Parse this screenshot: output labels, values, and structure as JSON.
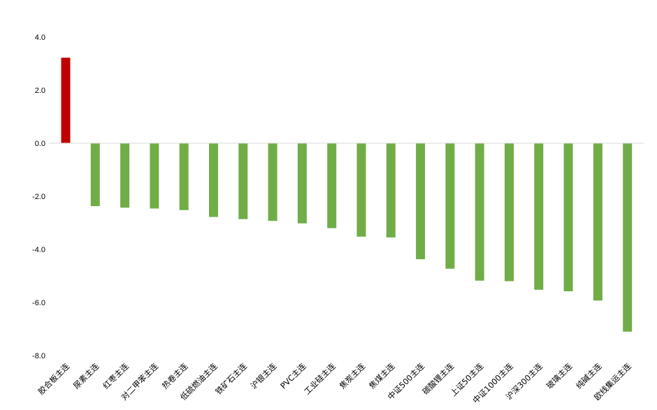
{
  "chart_data": {
    "type": "bar",
    "title": "",
    "xlabel": "",
    "ylabel": "",
    "ylim": [
      -8.0,
      4.0
    ],
    "yticks": [
      "4.0",
      "2.0",
      "0.0",
      "-2.0",
      "-4.0",
      "-6.0",
      "-8.0"
    ],
    "grid": false,
    "legend": "none",
    "colors": {
      "positive": "#C00000",
      "negative": "#70AD47",
      "zero_line": "#D9D9D9"
    },
    "categories": [
      "胶合板主连",
      "尿素主连",
      "红枣主连",
      "对二甲苯主连",
      "热卷主连",
      "低硫燃油主连",
      "铁矿石主连",
      "沪银主连",
      "PVC主连",
      "工业硅主连",
      "焦炭主连",
      "焦煤主连",
      "中证500主连",
      "碳酸锂主连",
      "上证50主连",
      "中证1000主连",
      "沪深300主连",
      "玻璃主连",
      "纯碱主连",
      "欧线集运主连"
    ],
    "values": [
      3.22,
      -2.37,
      -2.43,
      -2.46,
      -2.52,
      -2.78,
      -2.86,
      -2.93,
      -3.02,
      -3.2,
      -3.52,
      -3.55,
      -4.37,
      -4.73,
      -5.18,
      -5.2,
      -5.52,
      -5.58,
      -5.93,
      -7.1
    ]
  }
}
